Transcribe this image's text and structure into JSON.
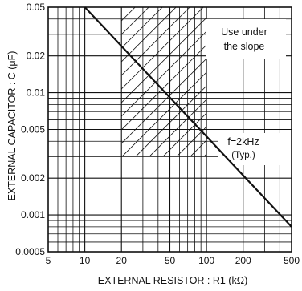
{
  "chart_data": {
    "type": "line",
    "title": "",
    "xlabel": "EXTERNAL RESISTOR : R1 (kΩ)",
    "ylabel": "EXTERNAL CAPACITOR : C (μF)",
    "x_scale": "log",
    "y_scale": "log",
    "xlim": [
      5,
      500
    ],
    "ylim": [
      0.0005,
      0.05
    ],
    "x_ticks": [
      5,
      10,
      20,
      50,
      100,
      200,
      500
    ],
    "x_tick_labels": [
      "5",
      "10",
      "20",
      "50",
      "100",
      "200",
      "500"
    ],
    "y_ticks": [
      0.0005,
      0.001,
      0.002,
      0.005,
      0.01,
      0.02,
      0.05
    ],
    "y_tick_labels": [
      "0.0005",
      "0.001",
      "0.002",
      "0.005",
      "0.01",
      "0.02",
      "0.05"
    ],
    "grid": true,
    "series": [
      {
        "name": "f=2kHz",
        "x": [
          10,
          500
        ],
        "y": [
          0.05,
          0.0008
        ]
      }
    ],
    "shaded_region": {
      "pattern": "diagonal hatch",
      "x_range": [
        20,
        100
      ],
      "y_range": [
        0.003,
        0.05
      ]
    },
    "annotations": {
      "slope_note_line1": "Use under",
      "slope_note_line2": "the slope",
      "curve_label": "f=2kHz",
      "curve_label_sub": "(Typ.)"
    }
  },
  "colors": {
    "line": "#111111",
    "grid": "#111111",
    "background": "#ffffff"
  }
}
